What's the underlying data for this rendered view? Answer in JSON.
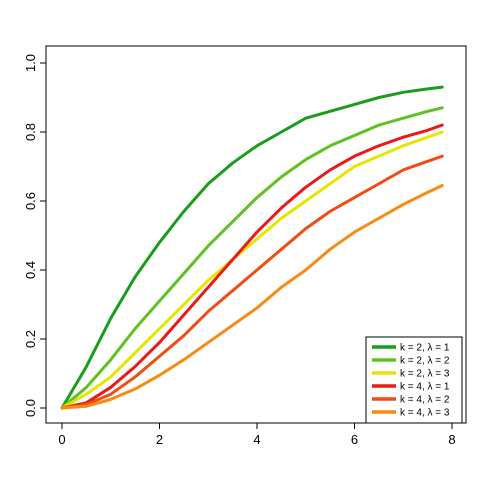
{
  "chart_data": {
    "type": "line",
    "title": "",
    "xlabel": "",
    "ylabel": "",
    "xlim": [
      0,
      7.8
    ],
    "ylim": [
      0,
      1.0
    ],
    "x_ticks": [
      0,
      2,
      4,
      6,
      8
    ],
    "y_ticks": [
      0.0,
      0.2,
      0.4,
      0.6,
      0.8,
      1.0
    ],
    "x_tick_labels": [
      "0",
      "2",
      "4",
      "6",
      "8"
    ],
    "y_tick_labels": [
      "0.0",
      "0.2",
      "0.4",
      "0.6",
      "0.8",
      "1.0"
    ],
    "grid": false,
    "legend_position": "bottom-right",
    "series": [
      {
        "name": "k = 2, λ = 1",
        "color": "#1a9e1a",
        "x": [
          0,
          0.5,
          1,
          1.5,
          2,
          2.5,
          3,
          3.5,
          4,
          4.5,
          5,
          5.5,
          6,
          6.5,
          7,
          7.5,
          7.8
        ],
        "y": [
          0,
          0.12,
          0.26,
          0.38,
          0.48,
          0.57,
          0.65,
          0.71,
          0.76,
          0.8,
          0.84,
          0.86,
          0.88,
          0.9,
          0.915,
          0.925,
          0.93
        ]
      },
      {
        "name": "k = 2, λ = 2",
        "color": "#5fc21e",
        "x": [
          0,
          0.5,
          1,
          1.5,
          2,
          2.5,
          3,
          3.5,
          4,
          4.5,
          5,
          5.5,
          6,
          6.5,
          7,
          7.5,
          7.8
        ],
        "y": [
          0,
          0.06,
          0.14,
          0.23,
          0.31,
          0.39,
          0.47,
          0.54,
          0.61,
          0.67,
          0.72,
          0.76,
          0.79,
          0.82,
          0.84,
          0.86,
          0.87
        ]
      },
      {
        "name": "k = 2, λ = 3",
        "color": "#e6e600",
        "x": [
          0,
          0.5,
          1,
          1.5,
          2,
          2.5,
          3,
          3.5,
          4,
          4.5,
          5,
          5.5,
          6,
          6.5,
          7,
          7.5,
          7.8
        ],
        "y": [
          0,
          0.04,
          0.09,
          0.16,
          0.23,
          0.3,
          0.37,
          0.43,
          0.49,
          0.55,
          0.6,
          0.65,
          0.7,
          0.73,
          0.76,
          0.785,
          0.8
        ]
      },
      {
        "name": "k = 4, λ = 1",
        "color": "#e81a1a",
        "x": [
          0,
          0.5,
          1,
          1.5,
          2,
          2.5,
          3,
          3.5,
          4,
          4.5,
          5,
          5.5,
          6,
          6.5,
          7,
          7.5,
          7.8
        ],
        "y": [
          0,
          0.015,
          0.06,
          0.12,
          0.19,
          0.27,
          0.35,
          0.43,
          0.51,
          0.58,
          0.64,
          0.69,
          0.73,
          0.76,
          0.785,
          0.805,
          0.82
        ]
      },
      {
        "name": "k = 4, λ = 2",
        "color": "#f04c14",
        "x": [
          0,
          0.5,
          1,
          1.5,
          2,
          2.5,
          3,
          3.5,
          4,
          4.5,
          5,
          5.5,
          6,
          6.5,
          7,
          7.5,
          7.8
        ],
        "y": [
          0,
          0.01,
          0.04,
          0.09,
          0.15,
          0.21,
          0.28,
          0.34,
          0.4,
          0.46,
          0.52,
          0.57,
          0.61,
          0.65,
          0.69,
          0.715,
          0.73
        ]
      },
      {
        "name": "k = 4, λ = 3",
        "color": "#f78c14",
        "x": [
          0,
          0.5,
          1,
          1.5,
          2,
          2.5,
          3,
          3.5,
          4,
          4.5,
          5,
          5.5,
          6,
          6.5,
          7,
          7.5,
          7.8
        ],
        "y": [
          0,
          0.005,
          0.025,
          0.055,
          0.095,
          0.14,
          0.19,
          0.24,
          0.29,
          0.35,
          0.4,
          0.46,
          0.51,
          0.55,
          0.59,
          0.625,
          0.645
        ]
      }
    ]
  }
}
